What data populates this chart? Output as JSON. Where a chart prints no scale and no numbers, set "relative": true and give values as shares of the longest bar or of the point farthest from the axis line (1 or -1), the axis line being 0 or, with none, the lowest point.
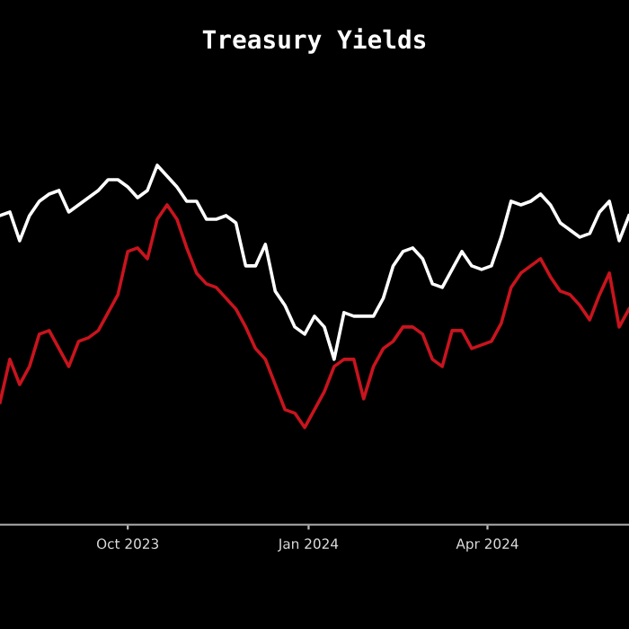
{
  "chart_data": {
    "type": "line",
    "title": "Treasury Yields",
    "relative": true,
    "grid": false,
    "legend": false,
    "x": [
      "2023-07-28",
      "2023-08-02",
      "2023-08-07",
      "2023-08-12",
      "2023-08-17",
      "2023-08-22",
      "2023-08-27",
      "2023-09-01",
      "2023-09-06",
      "2023-09-11",
      "2023-09-16",
      "2023-09-21",
      "2023-09-26",
      "2023-10-01",
      "2023-10-06",
      "2023-10-11",
      "2023-10-16",
      "2023-10-21",
      "2023-10-26",
      "2023-10-31",
      "2023-11-05",
      "2023-11-10",
      "2023-11-15",
      "2023-11-20",
      "2023-11-25",
      "2023-11-30",
      "2023-12-05",
      "2023-12-10",
      "2023-12-15",
      "2023-12-20",
      "2023-12-25",
      "2023-12-30",
      "2024-01-04",
      "2024-01-09",
      "2024-01-14",
      "2024-01-19",
      "2024-01-24",
      "2024-01-29",
      "2024-02-03",
      "2024-02-08",
      "2024-02-13",
      "2024-02-18",
      "2024-02-23",
      "2024-02-28",
      "2024-03-04",
      "2024-03-09",
      "2024-03-14",
      "2024-03-19",
      "2024-03-24",
      "2024-03-29",
      "2024-04-03",
      "2024-04-08",
      "2024-04-13",
      "2024-04-18",
      "2024-04-23",
      "2024-04-28",
      "2024-05-03",
      "2024-05-08",
      "2024-05-13",
      "2024-05-18",
      "2024-05-23",
      "2024-05-28",
      "2024-06-02",
      "2024-06-07",
      "2024-06-12"
    ],
    "xlim": [
      "2023-07-28",
      "2024-06-12"
    ],
    "xticks": [
      {
        "value": "2023-10-01",
        "label": "Oct 2023"
      },
      {
        "value": "2024-01-01",
        "label": "Jan 2024"
      },
      {
        "value": "2024-04-01",
        "label": "Apr 2024"
      }
    ],
    "series": [
      {
        "color": "#ffffff",
        "values": [
          0.86,
          0.87,
          0.79,
          0.86,
          0.9,
          0.92,
          0.93,
          0.87,
          0.89,
          0.91,
          0.93,
          0.96,
          0.96,
          0.94,
          0.91,
          0.93,
          1.0,
          0.97,
          0.94,
          0.9,
          0.9,
          0.85,
          0.85,
          0.86,
          0.84,
          0.72,
          0.72,
          0.78,
          0.65,
          0.61,
          0.55,
          0.53,
          0.58,
          0.55,
          0.46,
          0.59,
          0.58,
          0.58,
          0.58,
          0.63,
          0.72,
          0.76,
          0.77,
          0.74,
          0.67,
          0.66,
          0.71,
          0.76,
          0.72,
          0.71,
          0.72,
          0.8,
          0.9,
          0.89,
          0.9,
          0.92,
          0.89,
          0.84,
          0.82,
          0.8,
          0.81,
          0.87,
          0.9,
          0.79,
          0.86
        ]
      },
      {
        "color": "#c8141e",
        "values": [
          0.34,
          0.46,
          0.39,
          0.44,
          0.53,
          0.54,
          0.49,
          0.44,
          0.51,
          0.52,
          0.54,
          0.59,
          0.64,
          0.76,
          0.77,
          0.74,
          0.85,
          0.89,
          0.85,
          0.77,
          0.7,
          0.67,
          0.66,
          0.63,
          0.6,
          0.55,
          0.49,
          0.46,
          0.39,
          0.32,
          0.31,
          0.27,
          0.32,
          0.37,
          0.44,
          0.46,
          0.46,
          0.35,
          0.44,
          0.49,
          0.51,
          0.55,
          0.55,
          0.53,
          0.46,
          0.44,
          0.54,
          0.54,
          0.49,
          0.5,
          0.51,
          0.56,
          0.66,
          0.7,
          0.72,
          0.74,
          0.69,
          0.65,
          0.64,
          0.61,
          0.57,
          0.64,
          0.7,
          0.55,
          0.6
        ]
      }
    ]
  }
}
